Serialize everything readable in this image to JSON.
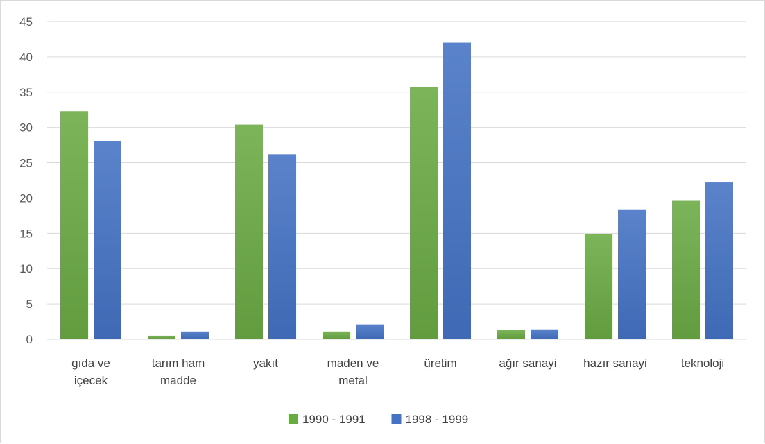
{
  "chart_data": {
    "type": "bar",
    "title": "",
    "xlabel": "",
    "ylabel": "",
    "categories": [
      [
        "gıda ve",
        "içecek"
      ],
      [
        "tarım ham",
        "madde"
      ],
      [
        "yakıt"
      ],
      [
        "maden ve",
        "metal"
      ],
      [
        "üretim"
      ],
      [
        "ağır sanayi"
      ],
      [
        "hazır sanayi"
      ],
      [
        "teknoloji"
      ]
    ],
    "series": [
      {
        "name": "1990 - 1991",
        "color": "#6aaa44",
        "values": [
          32.3,
          0.5,
          30.4,
          1.1,
          35.7,
          1.3,
          14.9,
          19.6
        ]
      },
      {
        "name": "1998 - 1999",
        "color": "#4472c4",
        "values": [
          28.1,
          1.1,
          26.2,
          2.1,
          42.0,
          1.4,
          18.4,
          22.2
        ]
      }
    ],
    "ylim": [
      0,
      45
    ],
    "yticks": [
      0,
      5,
      10,
      15,
      20,
      25,
      30,
      35,
      40,
      45
    ],
    "grid": true,
    "legend": "bottom"
  }
}
